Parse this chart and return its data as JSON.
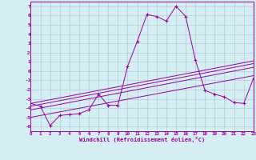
{
  "x": [
    0,
    1,
    2,
    3,
    4,
    5,
    6,
    7,
    8,
    9,
    10,
    11,
    12,
    13,
    14,
    15,
    16,
    17,
    18,
    19,
    20,
    21,
    22,
    23
  ],
  "line_main": [
    -3.5,
    -3.8,
    -5.9,
    -4.8,
    -4.7,
    -4.6,
    -4.2,
    -2.5,
    -3.7,
    -3.7,
    0.5,
    3.2,
    6.1,
    5.9,
    5.4,
    7.0,
    5.9,
    1.2,
    -2.1,
    -2.5,
    -2.8,
    -3.4,
    -3.5,
    -0.8
  ],
  "straight_lines": [
    [
      -3.5,
      1.1
    ],
    [
      -3.8,
      0.8
    ],
    [
      -4.2,
      0.4
    ],
    [
      -5.0,
      -0.5
    ]
  ],
  "ylim": [
    -6.5,
    7.5
  ],
  "xlim": [
    0,
    23
  ],
  "color": "#990099",
  "bg_color": "#d4eef4",
  "grid_color": "#b0c8d0",
  "xlabel": "Windchill (Refroidissement éolien,°C)",
  "yticks": [
    -6,
    -5,
    -4,
    -3,
    -2,
    -1,
    0,
    1,
    2,
    3,
    4,
    5,
    6,
    7
  ],
  "xticks": [
    0,
    1,
    2,
    3,
    4,
    5,
    6,
    7,
    8,
    9,
    10,
    11,
    12,
    13,
    14,
    15,
    16,
    17,
    18,
    19,
    20,
    21,
    22,
    23
  ]
}
